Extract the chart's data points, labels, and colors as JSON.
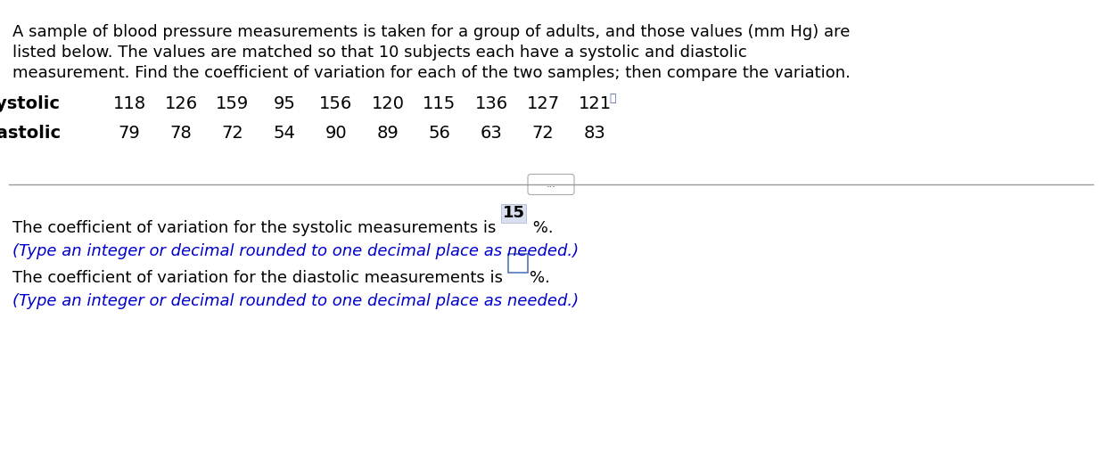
{
  "background_color": "#ffffff",
  "para_line1": "A sample of blood pressure measurements is taken for a group of adults, and those values (mm Hg) are",
  "para_line2": "listed below. The values are matched so that 10 subjects each have a systolic and diastolic",
  "para_line3": "measurement. Find the coefficient of variation for each of the two samples; then compare the variation.",
  "systolic_label": "Systolic",
  "diastolic_label": "Diastolic",
  "systolic_values": [
    "118",
    "126",
    "159",
    "95",
    "156",
    "120",
    "115",
    "136",
    "127",
    "121"
  ],
  "diastolic_values": [
    "79",
    "78",
    "72",
    "54",
    "90",
    "89",
    "56",
    "63",
    "72",
    "83"
  ],
  "divider_dots": "...",
  "answer_line1_pre": "The coefficient of variation for the systolic measurements is ",
  "answer_line1_value": "15",
  "answer_line1_post": " %.",
  "answer_line1_hint": "(Type an integer or decimal rounded to one decimal place as needed.)",
  "answer_line2_pre": "The coefficient of variation for the diastolic measurements is ",
  "answer_line2_post": "%.",
  "answer_line2_hint": "(Type an integer or decimal rounded to one decimal place as needed.)",
  "hint_color": "#0000cc",
  "text_color": "#000000",
  "font_size_para": 13.0,
  "font_size_table": 14.0,
  "font_size_answer": 13.0,
  "font_size_hint": 13.0
}
